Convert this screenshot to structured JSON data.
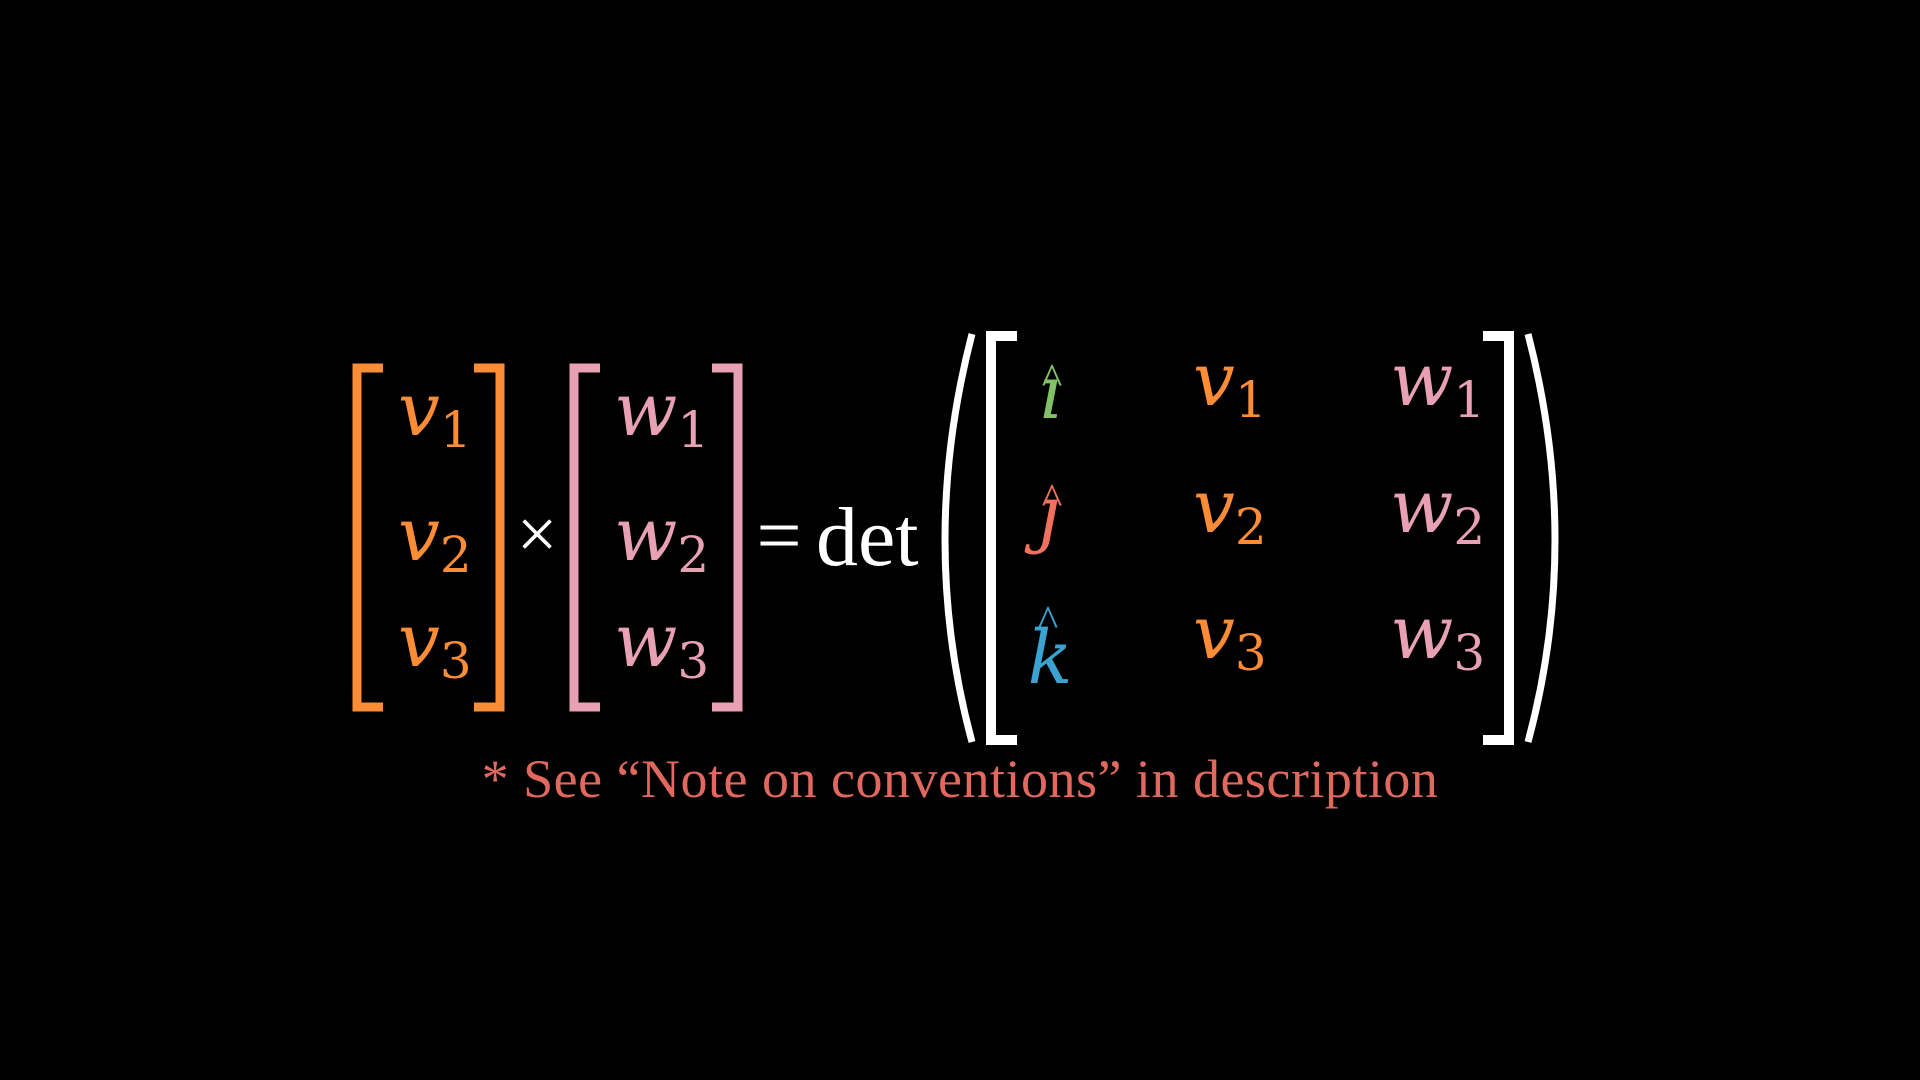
{
  "colors": {
    "background": "#000000",
    "v": "#FC8C36",
    "w": "#E8A0B4",
    "i_hat": "#83C167",
    "j_hat": "#F2705E",
    "k_hat": "#3BA3D0",
    "white": "#FFFFFF",
    "note": "#E0685E"
  },
  "equation": {
    "v_vector": {
      "symbol": "v",
      "subscripts": [
        "1",
        "2",
        "3"
      ]
    },
    "w_vector": {
      "symbol": "w",
      "subscripts": [
        "1",
        "2",
        "3"
      ]
    },
    "cross_operator": "×",
    "equals": "=",
    "function": "det",
    "matrix": {
      "basis": [
        {
          "symbol": "ı",
          "hat": "^",
          "name": "i-hat"
        },
        {
          "symbol": "ȷ",
          "hat": "^",
          "name": "j-hat"
        },
        {
          "symbol": "k",
          "hat": "^",
          "name": "k-hat"
        }
      ]
    }
  },
  "note": {
    "text": "* See “Note on conventions” in description"
  }
}
